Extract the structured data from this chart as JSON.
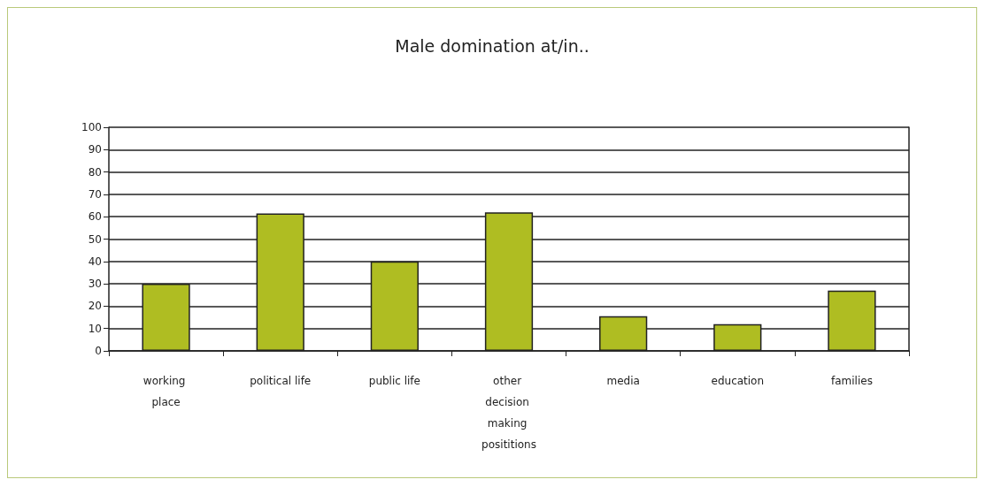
{
  "chart_data": {
    "type": "bar",
    "title": "Male domination at/in..",
    "categories": [
      "working place",
      "political life",
      "public life",
      "other decision making posititions",
      "media",
      "education",
      "families"
    ],
    "values": [
      30,
      61.5,
      40,
      62,
      15.5,
      12,
      27
    ],
    "color": "#afbd22",
    "ylim": [
      0,
      100
    ],
    "yticks": [
      0,
      10,
      20,
      30,
      40,
      50,
      60,
      70,
      80,
      90,
      100
    ],
    "grid": "y"
  }
}
